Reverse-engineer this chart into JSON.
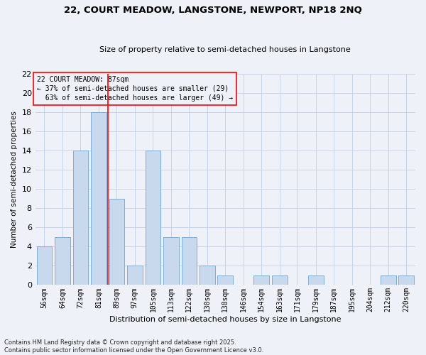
{
  "title1": "22, COURT MEADOW, LANGSTONE, NEWPORT, NP18 2NQ",
  "title2": "Size of property relative to semi-detached houses in Langstone",
  "xlabel": "Distribution of semi-detached houses by size in Langstone",
  "ylabel": "Number of semi-detached properties",
  "categories": [
    "56sqm",
    "64sqm",
    "72sqm",
    "81sqm",
    "89sqm",
    "97sqm",
    "105sqm",
    "113sqm",
    "122sqm",
    "130sqm",
    "138sqm",
    "146sqm",
    "154sqm",
    "163sqm",
    "171sqm",
    "179sqm",
    "187sqm",
    "195sqm",
    "204sqm",
    "212sqm",
    "220sqm"
  ],
  "values": [
    4,
    5,
    14,
    18,
    9,
    2,
    14,
    5,
    5,
    2,
    1,
    0,
    1,
    1,
    0,
    1,
    0,
    0,
    0,
    1,
    1
  ],
  "bar_color": "#c9d9ed",
  "bar_edge_color": "#7bafd4",
  "grid_color": "#c8d4e8",
  "background_color": "#eef2f8",
  "vline_x": 3.5,
  "vline_label": "22 COURT MEADOW: 87sqm",
  "pct_smaller": "37% of semi-detached houses are smaller (29)",
  "pct_larger": "63% of semi-detached houses are larger (49)",
  "ylim": [
    0,
    22
  ],
  "yticks": [
    0,
    2,
    4,
    6,
    8,
    10,
    12,
    14,
    16,
    18,
    20,
    22
  ],
  "footnote1": "Contains HM Land Registry data © Crown copyright and database right 2025.",
  "footnote2": "Contains public sector information licensed under the Open Government Licence v3.0."
}
